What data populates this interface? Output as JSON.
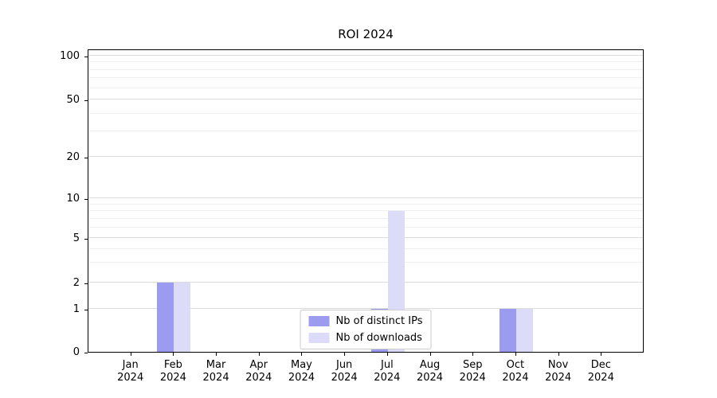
{
  "title": "ROI 2024",
  "chart_data": {
    "type": "bar",
    "title": "ROI 2024",
    "categories": [
      "Jan\n2024",
      "Feb\n2024",
      "Mar\n2024",
      "Apr\n2024",
      "May\n2024",
      "Jun\n2024",
      "Jul\n2024",
      "Aug\n2024",
      "Sep\n2024",
      "Oct\n2024",
      "Nov\n2024",
      "Dec\n2024"
    ],
    "series": [
      {
        "name": "Nb of distinct IPs",
        "color": "#9b9bef",
        "values": [
          0,
          2,
          0,
          0,
          0,
          0,
          1,
          0,
          0,
          1,
          0,
          0
        ]
      },
      {
        "name": "Nb of downloads",
        "color": "#dcdcf9",
        "values": [
          0,
          2,
          0,
          0,
          0,
          0,
          8,
          0,
          0,
          1,
          0,
          0
        ]
      }
    ],
    "xlabel": "",
    "ylabel": "",
    "yscale": "symlog",
    "yticks": [
      0,
      1,
      2,
      5,
      10,
      20,
      50,
      100
    ],
    "ylim": [
      0,
      100
    ],
    "grid": "horizontal",
    "legend_position": "lower center"
  }
}
